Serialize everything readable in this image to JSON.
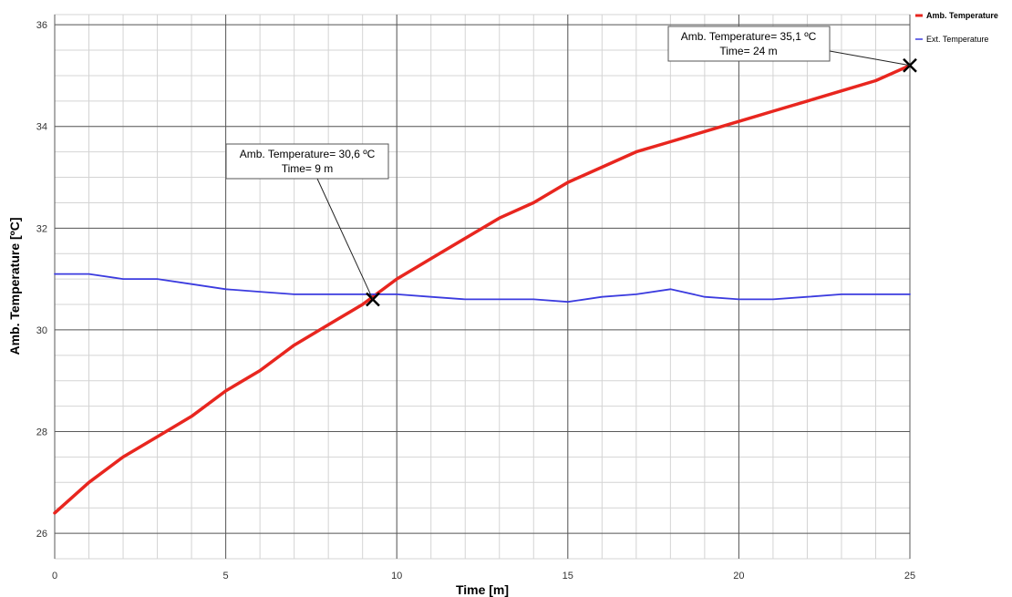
{
  "chart_data": {
    "type": "line",
    "xlabel": "Time [m]",
    "ylabel": "Amb. Temperature [ºC]",
    "xlim": [
      0,
      25
    ],
    "ylim": [
      25.5,
      36.2
    ],
    "x_ticks": [
      0,
      5,
      10,
      15,
      20,
      25
    ],
    "y_ticks": [
      26,
      28,
      30,
      32,
      34,
      36
    ],
    "grid": true,
    "legend_position": "top-right",
    "series": [
      {
        "name": "Amb. Temperature",
        "color": "#e8261f",
        "x": [
          0,
          1,
          2,
          3,
          4,
          5,
          6,
          7,
          8,
          9,
          10,
          11,
          12,
          13,
          14,
          15,
          16,
          17,
          18,
          19,
          20,
          21,
          22,
          23,
          24,
          25
        ],
        "values": [
          26.4,
          27.0,
          27.5,
          27.9,
          28.3,
          28.8,
          29.2,
          29.7,
          30.1,
          30.5,
          31.0,
          31.4,
          31.8,
          32.2,
          32.5,
          32.9,
          33.2,
          33.5,
          33.7,
          33.9,
          34.1,
          34.3,
          34.5,
          34.7,
          34.9,
          35.2
        ]
      },
      {
        "name": "Ext. Temperature",
        "color": "#3b3bdf",
        "x": [
          0,
          1,
          2,
          3,
          4,
          5,
          6,
          7,
          8,
          9,
          10,
          11,
          12,
          13,
          14,
          15,
          16,
          17,
          18,
          19,
          20,
          21,
          22,
          23,
          24,
          25
        ],
        "values": [
          31.1,
          31.1,
          31.0,
          31.0,
          30.9,
          30.8,
          30.75,
          30.7,
          30.7,
          30.7,
          30.7,
          30.65,
          30.6,
          30.6,
          30.6,
          30.55,
          30.65,
          30.7,
          30.8,
          30.65,
          30.6,
          30.6,
          30.65,
          30.7,
          30.7,
          30.7
        ]
      }
    ],
    "annotations": [
      {
        "lines": [
          "Amb. Temperature= 30,6 ºC",
          "Time= 9 m"
        ],
        "x": 9.3,
        "y": 30.6
      },
      {
        "lines": [
          "Amb. Temperature= 35,1 ºC",
          "Time= 24 m"
        ],
        "x": 25,
        "y": 35.2
      }
    ]
  }
}
